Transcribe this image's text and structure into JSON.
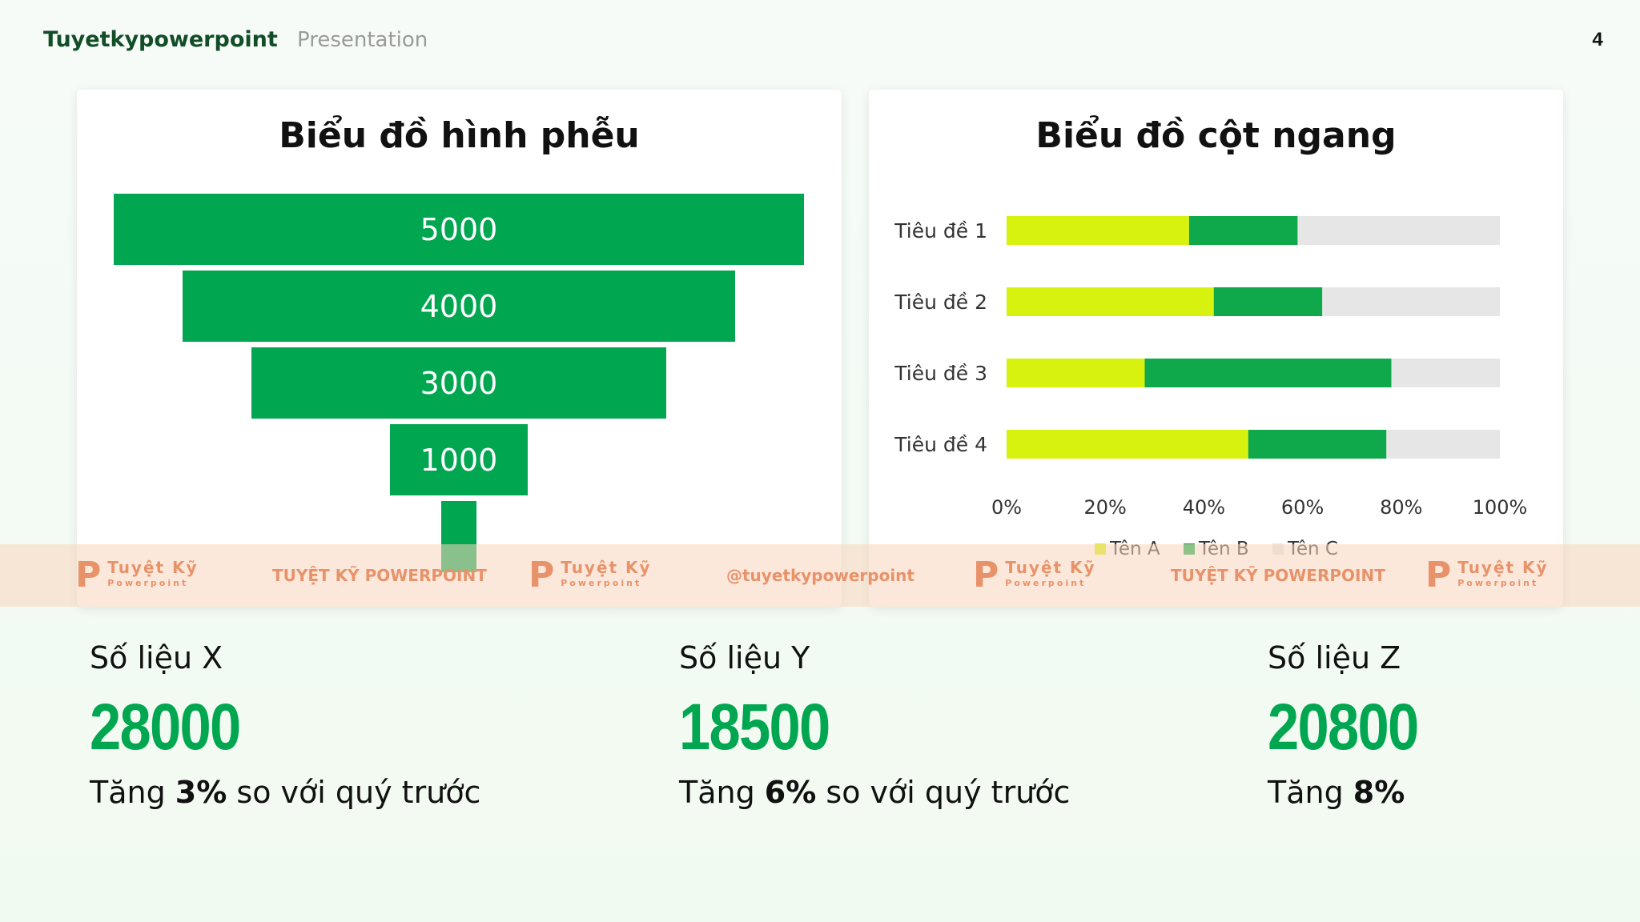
{
  "header": {
    "brand": "Tuyetkypowerpoint",
    "subtitle": "Presentation",
    "page_number": "4"
  },
  "funnel_title": "Biểu đồ hình phễu",
  "bars_title": "Biểu đồ cột ngang",
  "chart_data": [
    {
      "type": "funnel",
      "title": "Biểu đồ hình phễu",
      "values": [
        5000,
        4000,
        3000,
        1000,
        250
      ],
      "labels": [
        "5000",
        "4000",
        "3000",
        "1000",
        ""
      ],
      "color": "#00a650"
    },
    {
      "type": "bar",
      "orientation": "horizontal",
      "stacked": "percent",
      "title": "Biểu đồ cột ngang",
      "categories": [
        "Tiêu đề 1",
        "Tiêu đề 2",
        "Tiêu đề 3",
        "Tiêu đề 4"
      ],
      "series": [
        {
          "name": "Tên A",
          "color": "#d8f20f",
          "values": [
            37,
            42,
            28,
            49
          ]
        },
        {
          "name": "Tên B",
          "color": "#0fa84a",
          "values": [
            22,
            22,
            50,
            28
          ]
        },
        {
          "name": "Tên C",
          "color": "#e6e6e6",
          "values": [
            41,
            36,
            22,
            23
          ]
        }
      ],
      "xticks": [
        "0%",
        "20%",
        "40%",
        "60%",
        "80%",
        "100%"
      ],
      "xlim": [
        0,
        100
      ],
      "legend": "bottom"
    }
  ],
  "watermark": {
    "logo_top": "Tuyệt Kỹ",
    "logo_bottom": "Powerpoint",
    "texts": [
      "TUYỆT KỸ POWERPOINT",
      "@tuyetkypowerpoint",
      "TUYỆT KỸ POWERPOINT"
    ]
  },
  "stats": [
    {
      "label": "Số liệu X",
      "value": "28000",
      "desc_pre": "Tăng ",
      "desc_bold": "3%",
      "desc_post": " so với quý trước"
    },
    {
      "label": "Số liệu Y",
      "value": "18500",
      "desc_pre": "Tăng ",
      "desc_bold": "6%",
      "desc_post": " so với quý trước"
    },
    {
      "label": "Số liệu Z",
      "value": "20800",
      "desc_pre": "Tăng ",
      "desc_bold": "8%",
      "desc_post": ""
    }
  ]
}
